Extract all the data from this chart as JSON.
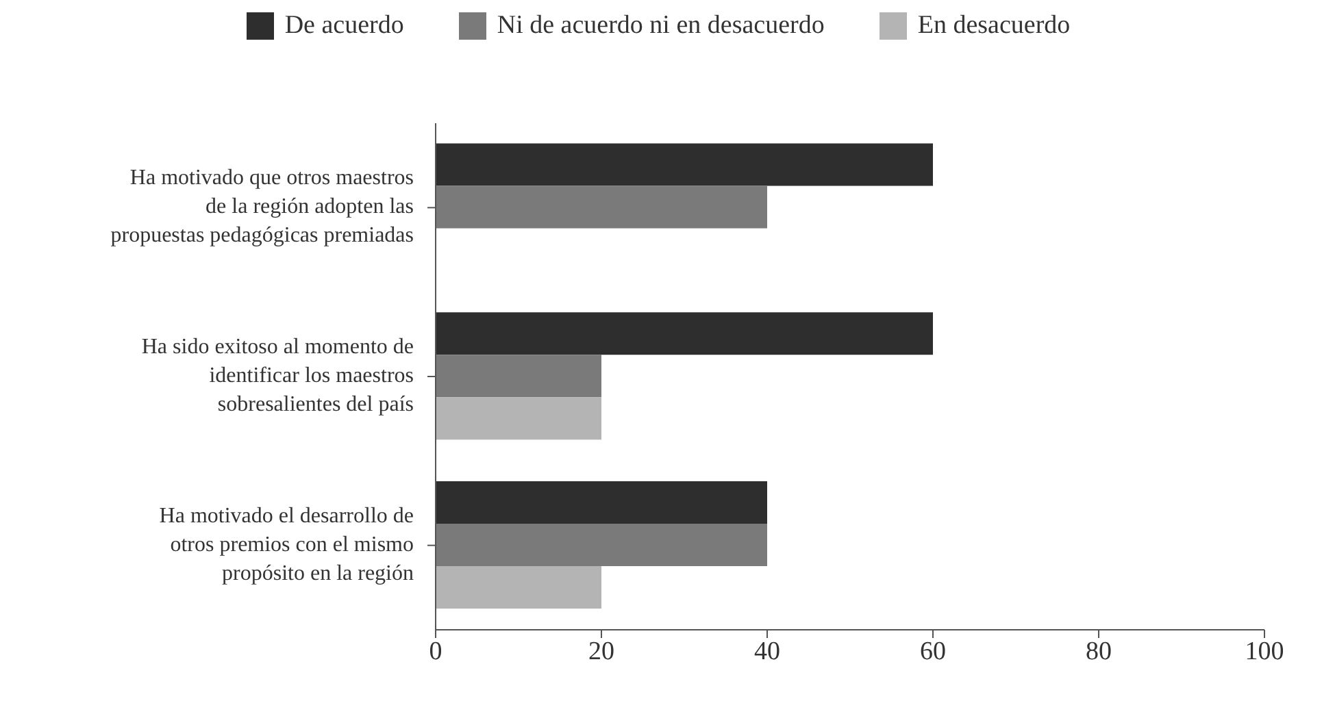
{
  "chart_data": {
    "type": "bar",
    "orientation": "horizontal",
    "categories": [
      "Ha motivado que otros maestros de la región adopten las propuestas pedagógicas premiadas",
      "Ha sido exitoso al momento de identificar los maestros sobresalientes del país",
      "Ha motivado el desarrollo de otros premios con el mismo propósito en la región"
    ],
    "series": [
      {
        "name": "De acuerdo",
        "color": "#2e2e2e",
        "values": [
          60,
          60,
          40
        ]
      },
      {
        "name": "Ni de acuerdo ni en desacuerdo",
        "color": "#7a7a7a",
        "values": [
          40,
          20,
          40
        ]
      },
      {
        "name": "En desacuerdo",
        "color": "#b4b4b4",
        "values": [
          0,
          20,
          20
        ]
      }
    ],
    "xlim": [
      0,
      100
    ],
    "xticks": [
      0,
      20,
      40,
      60,
      80,
      100
    ],
    "legend": "top"
  }
}
